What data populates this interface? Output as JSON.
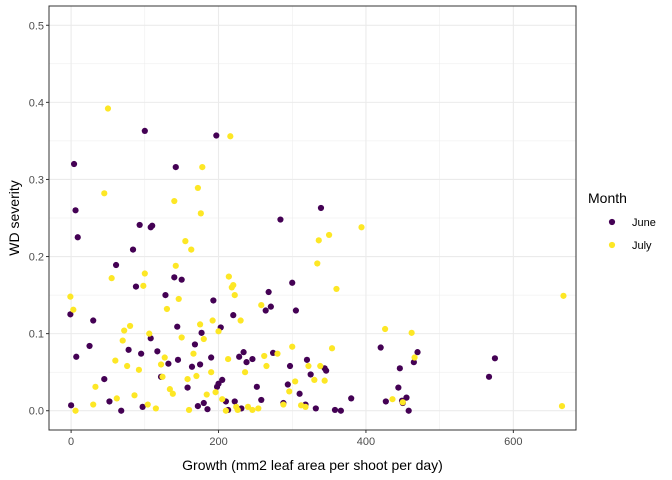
{
  "chart_data": {
    "type": "scatter",
    "xlabel": "Growth (mm2 leaf area per shoot per day)",
    "ylabel": "WD severity",
    "xlim": [
      -30,
      685
    ],
    "ylim": [
      -0.025,
      0.525
    ],
    "x_ticks": [
      0,
      200,
      400,
      600
    ],
    "x_tick_labels": [
      "0",
      "200",
      "400",
      "600"
    ],
    "y_ticks": [
      0.0,
      0.1,
      0.2,
      0.3,
      0.4,
      0.5
    ],
    "y_tick_labels": [
      "0.0",
      "0.1",
      "0.2",
      "0.3",
      "0.4",
      "0.5"
    ],
    "grid": true,
    "legend": {
      "title": "Month",
      "position": "right"
    },
    "series": [
      {
        "name": "June",
        "color": "#440154",
        "points": [
          [
            -1,
            0.125
          ],
          [
            0,
            0.007
          ],
          [
            4,
            0.32
          ],
          [
            6,
            0.26
          ],
          [
            7,
            0.07
          ],
          [
            9,
            0.225
          ],
          [
            25,
            0.084
          ],
          [
            30,
            0.117
          ],
          [
            45,
            0.041
          ],
          [
            52,
            0.012
          ],
          [
            61,
            0.189
          ],
          [
            68,
            0.0
          ],
          [
            78,
            0.079
          ],
          [
            84,
            0.209
          ],
          [
            88,
            0.161
          ],
          [
            93,
            0.241
          ],
          [
            95,
            0.074
          ],
          [
            97,
            0.005
          ],
          [
            100,
            0.363
          ],
          [
            108,
            0.094
          ],
          [
            108,
            0.238
          ],
          [
            110,
            0.24
          ],
          [
            117,
            0.077
          ],
          [
            122,
            0.044
          ],
          [
            128,
            0.15
          ],
          [
            132,
            0.061
          ],
          [
            140,
            0.173
          ],
          [
            142,
            0.316
          ],
          [
            144,
            0.109
          ],
          [
            145,
            0.066
          ],
          [
            150,
            0.17
          ],
          [
            158,
            0.03
          ],
          [
            164,
            0.057
          ],
          [
            168,
            0.086
          ],
          [
            172,
            0.006
          ],
          [
            175,
            0.06
          ],
          [
            177,
            0.101
          ],
          [
            180,
            0.01
          ],
          [
            185,
            0.002
          ],
          [
            190,
            0.069
          ],
          [
            193,
            0.143
          ],
          [
            197,
            0.357
          ],
          [
            198,
            0.031
          ],
          [
            200,
            0.035
          ],
          [
            203,
            0.108
          ],
          [
            205,
            0.04
          ],
          [
            210,
            0.012
          ],
          [
            213,
            0.001
          ],
          [
            220,
            0.124
          ],
          [
            222,
            0.012
          ],
          [
            228,
            0.07
          ],
          [
            231,
            0.003
          ],
          [
            234,
            0.076
          ],
          [
            238,
            0.063
          ],
          [
            246,
            0.067
          ],
          [
            252,
            0.031
          ],
          [
            258,
            0.014
          ],
          [
            264,
            0.13
          ],
          [
            268,
            0.154
          ],
          [
            271,
            0.135
          ],
          [
            274,
            0.075
          ],
          [
            284,
            0.248
          ],
          [
            288,
            0.01
          ],
          [
            294,
            0.034
          ],
          [
            297,
            0.058
          ],
          [
            300,
            0.166
          ],
          [
            305,
            0.13
          ],
          [
            310,
            0.022
          ],
          [
            318,
            0.008
          ],
          [
            320,
            0.066
          ],
          [
            325,
            0.047
          ],
          [
            332,
            0.003
          ],
          [
            339,
            0.263
          ],
          [
            344,
            0.055
          ],
          [
            346,
            0.052
          ],
          [
            358,
            0.001
          ],
          [
            366,
            0.0
          ],
          [
            380,
            0.016
          ],
          [
            420,
            0.082
          ],
          [
            427,
            0.012
          ],
          [
            444,
            0.03
          ],
          [
            446,
            0.055
          ],
          [
            449,
            0.013
          ],
          [
            450,
            0.01
          ],
          [
            455,
            0.017
          ],
          [
            458,
            0.0
          ],
          [
            465,
            0.063
          ],
          [
            470,
            0.076
          ],
          [
            567,
            0.044
          ],
          [
            575,
            0.068
          ]
        ]
      },
      {
        "name": "July",
        "color": "#fde725",
        "points": [
          [
            -1,
            0.148
          ],
          [
            3,
            0.131
          ],
          [
            6,
            0.0
          ],
          [
            30,
            0.008
          ],
          [
            33,
            0.031
          ],
          [
            45,
            0.282
          ],
          [
            50,
            0.392
          ],
          [
            55,
            0.172
          ],
          [
            60,
            0.065
          ],
          [
            62,
            0.016
          ],
          [
            70,
            0.091
          ],
          [
            72,
            0.104
          ],
          [
            76,
            0.058
          ],
          [
            80,
            0.11
          ],
          [
            86,
            0.02
          ],
          [
            92,
            0.053
          ],
          [
            98,
            0.162
          ],
          [
            100,
            0.178
          ],
          [
            104,
            0.008
          ],
          [
            106,
            0.1
          ],
          [
            115,
            0.003
          ],
          [
            122,
            0.06
          ],
          [
            124,
            0.044
          ],
          [
            127,
            0.069
          ],
          [
            130,
            0.132
          ],
          [
            134,
            0.028
          ],
          [
            138,
            0.022
          ],
          [
            140,
            0.272
          ],
          [
            142,
            0.188
          ],
          [
            146,
            0.145
          ],
          [
            150,
            0.095
          ],
          [
            155,
            0.22
          ],
          [
            158,
            0.041
          ],
          [
            160,
            0.001
          ],
          [
            163,
            0.209
          ],
          [
            166,
            0.074
          ],
          [
            170,
            0.045
          ],
          [
            172,
            0.289
          ],
          [
            175,
            0.112
          ],
          [
            176,
            0.256
          ],
          [
            178,
            0.316
          ],
          [
            180,
            0.093
          ],
          [
            184,
            0.021
          ],
          [
            190,
            0.05
          ],
          [
            192,
            0.117
          ],
          [
            196,
            0.024
          ],
          [
            200,
            0.103
          ],
          [
            205,
            0.015
          ],
          [
            210,
            0.0
          ],
          [
            213,
            0.067
          ],
          [
            214,
            0.174
          ],
          [
            216,
            0.356
          ],
          [
            218,
            0.16
          ],
          [
            220,
            0.163
          ],
          [
            222,
            0.15
          ],
          [
            224,
            0.005
          ],
          [
            226,
            0.001
          ],
          [
            230,
            0.117
          ],
          [
            236,
            0.05
          ],
          [
            240,
            0.005
          ],
          [
            246,
            0.001
          ],
          [
            254,
            0.003
          ],
          [
            258,
            0.137
          ],
          [
            262,
            0.071
          ],
          [
            265,
            0.058
          ],
          [
            280,
            0.074
          ],
          [
            288,
            0.008
          ],
          [
            296,
            0.025
          ],
          [
            300,
            0.083
          ],
          [
            304,
            0.038
          ],
          [
            312,
            0.007
          ],
          [
            318,
            0.005
          ],
          [
            322,
            0.058
          ],
          [
            330,
            0.04
          ],
          [
            334,
            0.191
          ],
          [
            336,
            0.221
          ],
          [
            338,
            0.058
          ],
          [
            344,
            0.039
          ],
          [
            350,
            0.228
          ],
          [
            354,
            0.081
          ],
          [
            360,
            0.158
          ],
          [
            394,
            0.238
          ],
          [
            426,
            0.106
          ],
          [
            436,
            0.015
          ],
          [
            450,
            0.011
          ],
          [
            462,
            0.101
          ],
          [
            466,
            0.069
          ],
          [
            666,
            0.006
          ],
          [
            668,
            0.149
          ]
        ]
      }
    ]
  }
}
